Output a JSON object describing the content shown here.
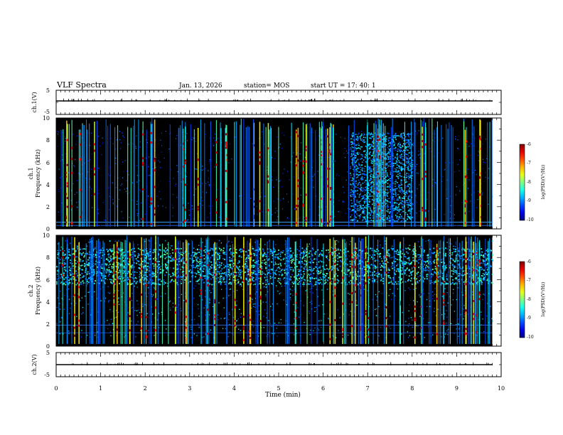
{
  "header": {
    "title": "VLF Spectra",
    "date": "Jan. 13, 2026",
    "station": "station= MOS",
    "start": "start  UT =   17: 40: 1"
  },
  "chart_data": [
    {
      "panel": "ch.1 waveform",
      "type": "line",
      "ylabel": "ch.1(V)",
      "ylim": [
        -5,
        5
      ],
      "y_ticks": [
        "5",
        "-5"
      ],
      "baseline": 0
    },
    {
      "panel": "ch.1 spectrogram",
      "type": "heatmap",
      "ylabel": "ch.1\nFrequency (kHz)",
      "ylim": [
        0,
        10
      ],
      "y_ticks": [
        "0",
        "2",
        "4",
        "6",
        "8",
        "10"
      ],
      "colorbar": {
        "label": "log(PSD)(V²/Hz)",
        "ticks": [
          "-6",
          "-7",
          "-8",
          "-9",
          "-10"
        ],
        "range": [
          -10,
          -6
        ]
      },
      "noise_band_min": [
        6.6,
        8.0
      ],
      "data_end_min": 9.8
    },
    {
      "panel": "ch.2 spectrogram",
      "type": "heatmap",
      "ylabel": "ch.2\nFrequency (kHz)",
      "ylim": [
        0,
        10
      ],
      "y_ticks": [
        "0",
        "2",
        "4",
        "6",
        "8",
        "10"
      ],
      "colorbar": {
        "label": "log(PSD)(V²/Hz)",
        "ticks": [
          "-6",
          "-7",
          "-8",
          "-9",
          "-10"
        ],
        "range": [
          -10,
          -6
        ]
      },
      "data_end_min": 9.8
    },
    {
      "panel": "ch.2 waveform",
      "type": "line",
      "ylabel": "ch.2(V)",
      "ylim": [
        -5,
        5
      ],
      "y_ticks": [
        "5",
        "-5"
      ],
      "baseline": 0
    }
  ],
  "x_axis": {
    "label": "Time (min)",
    "ticks": [
      "0",
      "1",
      "2",
      "3",
      "4",
      "5",
      "6",
      "7",
      "8",
      "9",
      "10"
    ],
    "xlim": [
      0,
      10
    ]
  }
}
